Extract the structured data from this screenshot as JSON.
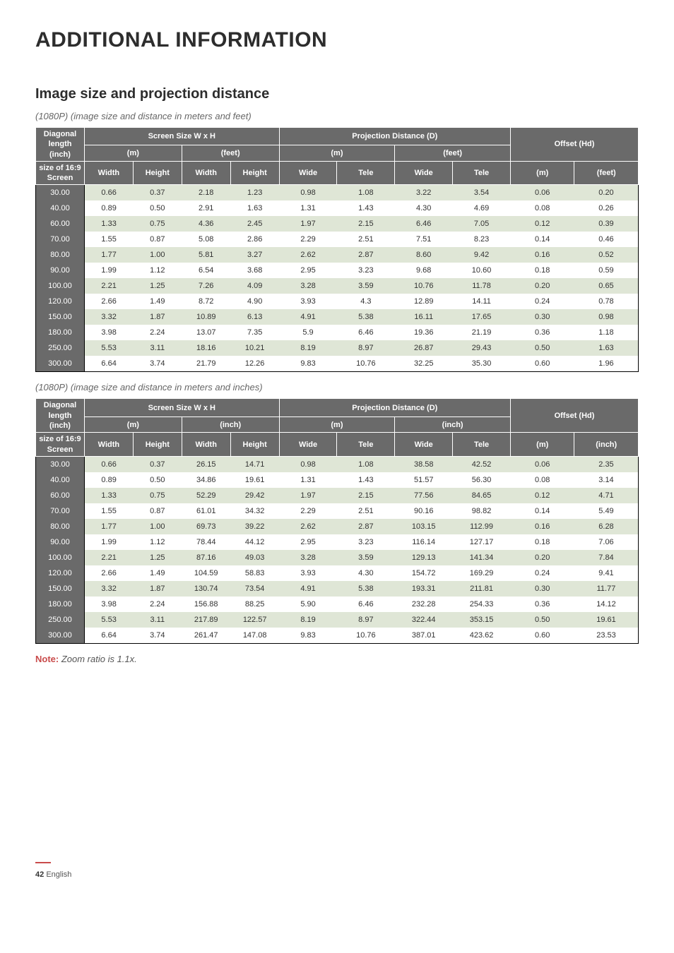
{
  "page_title": "ADDITIONAL INFORMATION",
  "section_title": "Image size and projection distance",
  "caption_1": "(1080P) (image size and distance in meters and feet)",
  "caption_2": "(1080P) (image size and distance in meters and inches)",
  "note_label": "Note:",
  "note_body": " Zoom ratio is 1.1x.",
  "footer_page": "42",
  "footer_lang": "English",
  "colors": {
    "header_bg": "#6a6a6a",
    "header_fg": "#ffffff",
    "row_odd_bg": "#dfe6d6",
    "row_even_bg": "#ffffff",
    "note_red": "#c94b4b"
  },
  "header_labels": {
    "diagonal_top": "Diagonal length (inch)",
    "diagonal_sub": "size of 16:9 Screen",
    "screen_size": "Screen Size W x H",
    "proj_dist": "Projection Distance (D)",
    "offset": "Offset (Hd)",
    "m": "(m)",
    "feet": "(feet)",
    "inch": "(inch)",
    "width": "Width",
    "height": "Height",
    "wide": "Wide",
    "tele": "Tele"
  },
  "table1": {
    "unit2_label": "(feet)",
    "rows": [
      [
        "30.00",
        "0.66",
        "0.37",
        "2.18",
        "1.23",
        "0.98",
        "1.08",
        "3.22",
        "3.54",
        "0.06",
        "0.20"
      ],
      [
        "40.00",
        "0.89",
        "0.50",
        "2.91",
        "1.63",
        "1.31",
        "1.43",
        "4.30",
        "4.69",
        "0.08",
        "0.26"
      ],
      [
        "60.00",
        "1.33",
        "0.75",
        "4.36",
        "2.45",
        "1.97",
        "2.15",
        "6.46",
        "7.05",
        "0.12",
        "0.39"
      ],
      [
        "70.00",
        "1.55",
        "0.87",
        "5.08",
        "2.86",
        "2.29",
        "2.51",
        "7.51",
        "8.23",
        "0.14",
        "0.46"
      ],
      [
        "80.00",
        "1.77",
        "1.00",
        "5.81",
        "3.27",
        "2.62",
        "2.87",
        "8.60",
        "9.42",
        "0.16",
        "0.52"
      ],
      [
        "90.00",
        "1.99",
        "1.12",
        "6.54",
        "3.68",
        "2.95",
        "3.23",
        "9.68",
        "10.60",
        "0.18",
        "0.59"
      ],
      [
        "100.00",
        "2.21",
        "1.25",
        "7.26",
        "4.09",
        "3.28",
        "3.59",
        "10.76",
        "11.78",
        "0.20",
        "0.65"
      ],
      [
        "120.00",
        "2.66",
        "1.49",
        "8.72",
        "4.90",
        "3.93",
        "4.3",
        "12.89",
        "14.11",
        "0.24",
        "0.78"
      ],
      [
        "150.00",
        "3.32",
        "1.87",
        "10.89",
        "6.13",
        "4.91",
        "5.38",
        "16.11",
        "17.65",
        "0.30",
        "0.98"
      ],
      [
        "180.00",
        "3.98",
        "2.24",
        "13.07",
        "7.35",
        "5.9",
        "6.46",
        "19.36",
        "21.19",
        "0.36",
        "1.18"
      ],
      [
        "250.00",
        "5.53",
        "3.11",
        "18.16",
        "10.21",
        "8.19",
        "8.97",
        "26.87",
        "29.43",
        "0.50",
        "1.63"
      ],
      [
        "300.00",
        "6.64",
        "3.74",
        "21.79",
        "12.26",
        "9.83",
        "10.76",
        "32.25",
        "35.30",
        "0.60",
        "1.96"
      ]
    ]
  },
  "table2": {
    "unit2_label": "(inch)",
    "rows": [
      [
        "30.00",
        "0.66",
        "0.37",
        "26.15",
        "14.71",
        "0.98",
        "1.08",
        "38.58",
        "42.52",
        "0.06",
        "2.35"
      ],
      [
        "40.00",
        "0.89",
        "0.50",
        "34.86",
        "19.61",
        "1.31",
        "1.43",
        "51.57",
        "56.30",
        "0.08",
        "3.14"
      ],
      [
        "60.00",
        "1.33",
        "0.75",
        "52.29",
        "29.42",
        "1.97",
        "2.15",
        "77.56",
        "84.65",
        "0.12",
        "4.71"
      ],
      [
        "70.00",
        "1.55",
        "0.87",
        "61.01",
        "34.32",
        "2.29",
        "2.51",
        "90.16",
        "98.82",
        "0.14",
        "5.49"
      ],
      [
        "80.00",
        "1.77",
        "1.00",
        "69.73",
        "39.22",
        "2.62",
        "2.87",
        "103.15",
        "112.99",
        "0.16",
        "6.28"
      ],
      [
        "90.00",
        "1.99",
        "1.12",
        "78.44",
        "44.12",
        "2.95",
        "3.23",
        "116.14",
        "127.17",
        "0.18",
        "7.06"
      ],
      [
        "100.00",
        "2.21",
        "1.25",
        "87.16",
        "49.03",
        "3.28",
        "3.59",
        "129.13",
        "141.34",
        "0.20",
        "7.84"
      ],
      [
        "120.00",
        "2.66",
        "1.49",
        "104.59",
        "58.83",
        "3.93",
        "4.30",
        "154.72",
        "169.29",
        "0.24",
        "9.41"
      ],
      [
        "150.00",
        "3.32",
        "1.87",
        "130.74",
        "73.54",
        "4.91",
        "5.38",
        "193.31",
        "211.81",
        "0.30",
        "11.77"
      ],
      [
        "180.00",
        "3.98",
        "2.24",
        "156.88",
        "88.25",
        "5.90",
        "6.46",
        "232.28",
        "254.33",
        "0.36",
        "14.12"
      ],
      [
        "250.00",
        "5.53",
        "3.11",
        "217.89",
        "122.57",
        "8.19",
        "8.97",
        "322.44",
        "353.15",
        "0.50",
        "19.61"
      ],
      [
        "300.00",
        "6.64",
        "3.74",
        "261.47",
        "147.08",
        "9.83",
        "10.76",
        "387.01",
        "423.62",
        "0.60",
        "23.53"
      ]
    ]
  }
}
